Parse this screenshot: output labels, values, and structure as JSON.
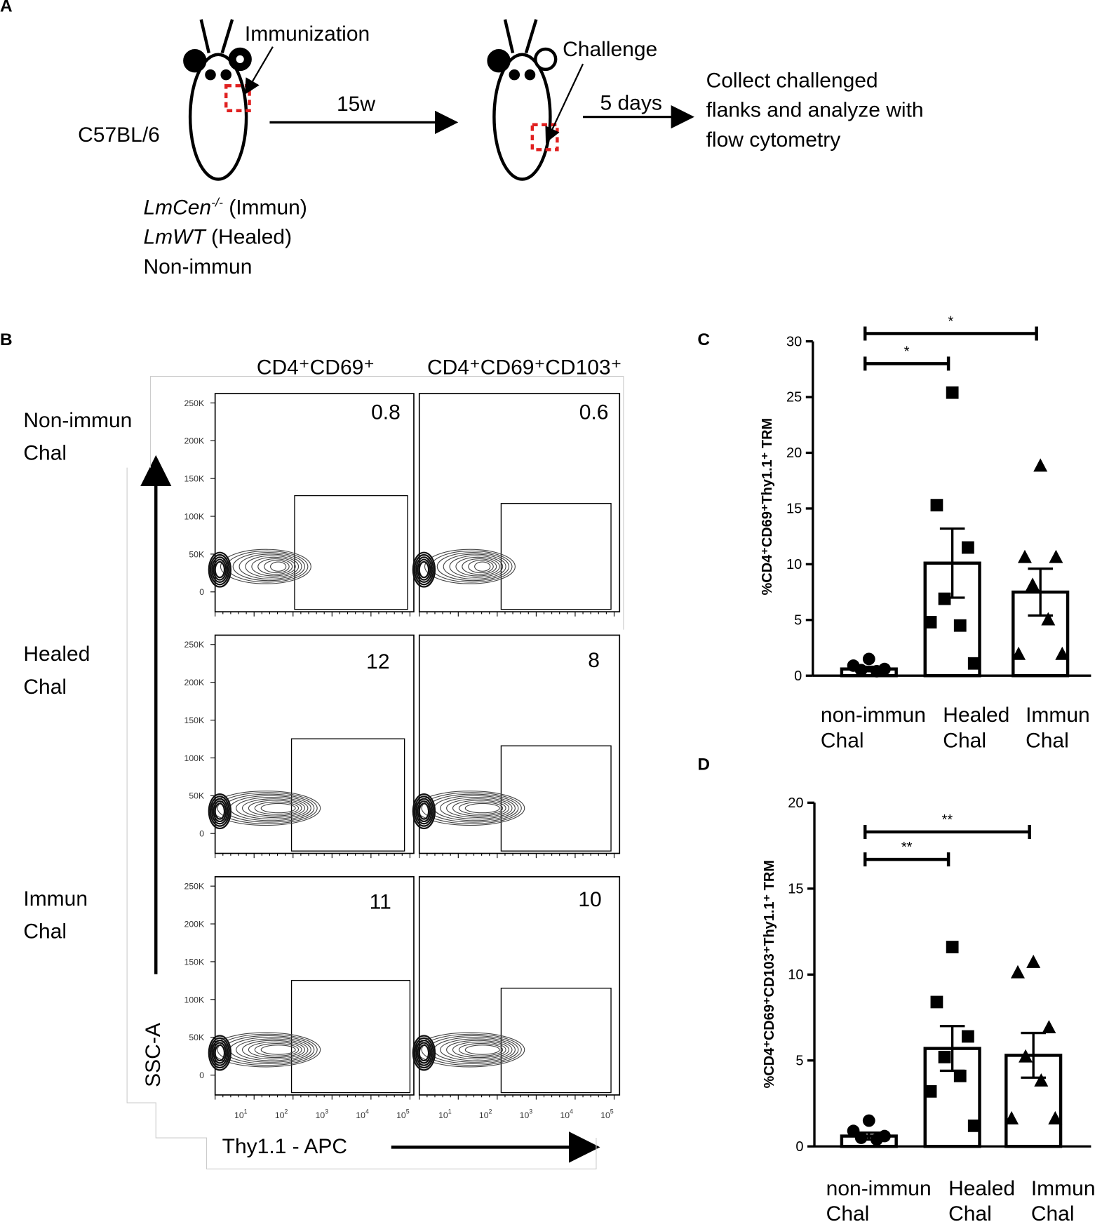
{
  "panel_labels": [
    "A",
    "B",
    "C",
    "D"
  ],
  "panel_a": {
    "immunization": "Immunization",
    "strain": "C57BL/6",
    "interval": "15w",
    "challenge": "Challenge",
    "days": "5 days",
    "collect": [
      "Collect challenged",
      "flanks and analyze with",
      "flow cytometry"
    ],
    "groups": [
      [
        {
          "text": "LmCen",
          "italic": true
        },
        {
          "text": "-/-",
          "italic": true,
          "sup": true
        },
        {
          "text": " (Immun)"
        }
      ],
      [
        {
          "text": "LmWT",
          "italic": true
        },
        {
          "text": " (Healed)"
        }
      ],
      [
        {
          "text": "Non-immun"
        }
      ]
    ]
  },
  "panel_b": {
    "columns": [
      "CD4⁺CD69⁺",
      "CD4⁺CD69⁺CD103⁺"
    ],
    "rows": [
      [
        "Non-immun",
        "Chal"
      ],
      [
        "Healed",
        "Chal"
      ],
      [
        "Immun",
        "Chal"
      ]
    ],
    "gate_percents": [
      [
        "0.8",
        "0.6"
      ],
      [
        "12",
        "8"
      ],
      [
        "11",
        "10"
      ]
    ],
    "y_tick_labels": [
      "250K",
      "200K",
      "150K",
      "100K",
      "50K",
      "0"
    ],
    "x_tick_labels": [
      [
        "10",
        "1"
      ],
      [
        "10",
        "2"
      ],
      [
        "10",
        "3"
      ],
      [
        "10",
        "4"
      ],
      [
        "10",
        "5"
      ]
    ],
    "ylabel": "SSC-A",
    "xlabel": "Thy1.1 - APC"
  },
  "chart_data": [
    {
      "type": "bar",
      "ylabel": "%CD4⁺CD69⁺Thy1.1⁺ TRM",
      "categories": [
        [
          "non-immun",
          "Chal"
        ],
        [
          "Healed",
          "Chal"
        ],
        [
          "Immun",
          "Chal"
        ]
      ],
      "values": [
        0.6,
        10.1,
        7.5
      ],
      "errors": [
        0.2,
        3.1,
        2.1
      ],
      "points": [
        [
          1.5,
          0.9,
          0.6,
          0.5,
          0.4
        ],
        [
          25.4,
          15.3,
          11.5,
          6.9,
          4.5,
          4.8,
          1.1
        ],
        [
          18.8,
          10.6,
          10.6,
          8.1,
          5.0,
          1.9,
          1.9
        ]
      ],
      "markers": [
        "circle",
        "square",
        "triangle"
      ],
      "color": "#000000",
      "ylim": [
        0,
        30
      ],
      "yticks": [
        0,
        5,
        10,
        15,
        20,
        25,
        30
      ],
      "brackets": [
        {
          "label": "*",
          "y": 28.0
        },
        {
          "label": "*",
          "y": 30.7
        }
      ]
    },
    {
      "type": "bar",
      "ylabel": "%CD4⁺CD69⁺CD103⁺Thy1.1⁺ TRM",
      "categories": [
        [
          "non-immun",
          "Chal"
        ],
        [
          "Healed",
          "Chal"
        ],
        [
          "Immun",
          "Chal"
        ]
      ],
      "values": [
        0.6,
        5.7,
        5.3
      ],
      "errors": [
        0.2,
        1.3,
        1.3
      ],
      "points": [
        [
          1.5,
          0.9,
          0.6,
          0.5,
          0.4
        ],
        [
          11.6,
          8.4,
          6.4,
          5.2,
          4.1,
          3.2,
          1.2
        ],
        [
          10.7,
          10.1,
          6.9,
          5.2,
          3.8,
          1.6,
          1.6
        ]
      ],
      "markers": [
        "circle",
        "square",
        "triangle"
      ],
      "color": "#000000",
      "ylim": [
        0,
        20
      ],
      "yticks": [
        0,
        5,
        10,
        15,
        20
      ],
      "brackets": [
        {
          "label": "**",
          "y": 16.7
        },
        {
          "label": "**",
          "y": 18.3
        }
      ]
    }
  ]
}
